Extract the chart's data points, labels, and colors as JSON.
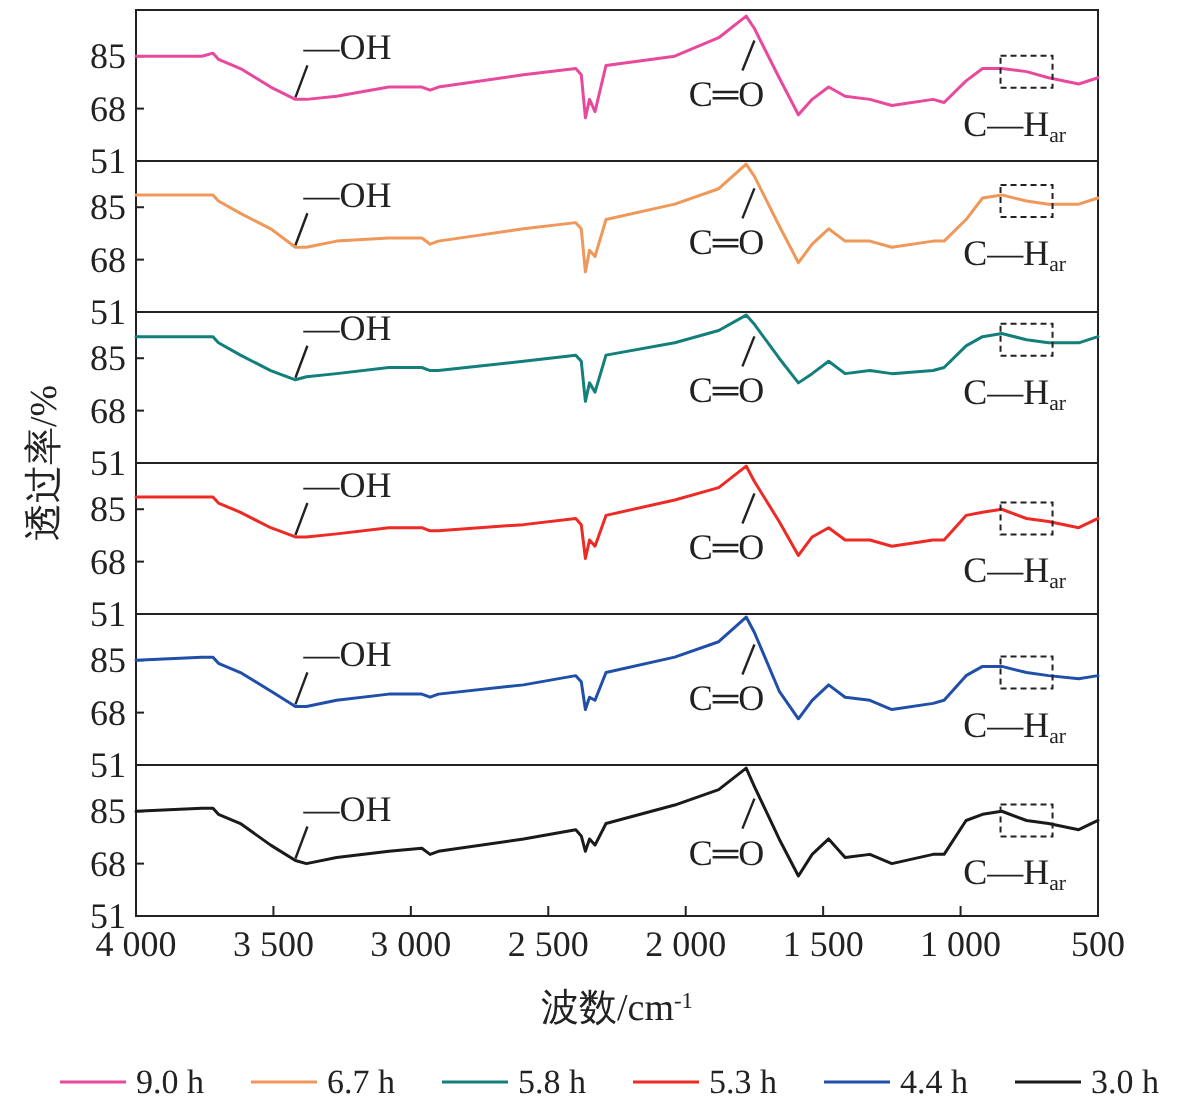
{
  "chart_data": [
    {
      "type": "line",
      "ylabel": "透过率/%",
      "x": [
        4000,
        3760,
        3720,
        3700,
        3620,
        3510,
        3420,
        3380,
        3270,
        3080,
        2960,
        2930,
        2900,
        2590,
        2400,
        2380,
        2365,
        2350,
        2330,
        2290,
        2040,
        1880,
        1780,
        1750,
        1660,
        1590,
        1540,
        1480,
        1420,
        1330,
        1250,
        1100,
        1060,
        980,
        920,
        850,
        760,
        680,
        570,
        500
      ],
      "xlim": [
        4000,
        500
      ],
      "ylim": [
        51,
        100
      ],
      "yticks": [
        51,
        68,
        85
      ],
      "tick_labels": "y",
      "legend": "bottom",
      "series": [
        {
          "name": "9.0 h",
          "color": "#e8499c",
          "values": [
            85,
            85,
            86,
            84,
            81,
            75,
            71,
            71,
            72,
            75,
            75,
            74,
            75,
            79,
            81,
            79,
            65,
            71,
            67,
            82,
            85,
            91,
            98,
            94,
            78,
            66,
            71,
            75,
            72,
            71,
            69,
            71,
            70,
            77,
            81,
            81,
            80,
            78,
            76,
            78
          ]
        }
      ],
      "annotations": [
        {
          "text": "—OH",
          "x": 3420,
          "y": 71
        },
        {
          "text": "C═O",
          "x": 1750,
          "y": 94
        },
        {
          "text": "C—H$_{ar}$",
          "x": 760,
          "y": 80
        }
      ]
    },
    {
      "type": "line",
      "x": [
        4000,
        3760,
        3720,
        3700,
        3620,
        3510,
        3420,
        3380,
        3270,
        3080,
        2960,
        2930,
        2900,
        2590,
        2400,
        2380,
        2365,
        2350,
        2330,
        2290,
        2040,
        1880,
        1780,
        1750,
        1660,
        1590,
        1540,
        1480,
        1420,
        1330,
        1250,
        1100,
        1060,
        980,
        920,
        850,
        760,
        680,
        570,
        500
      ],
      "xlim": [
        4000,
        500
      ],
      "ylim": [
        51,
        100
      ],
      "yticks": [
        51,
        68,
        85
      ],
      "tick_labels": "y",
      "legend": "bottom",
      "series": [
        {
          "name": "6.7 h",
          "color": "#f0975a",
          "values": [
            89,
            89,
            89,
            87,
            83,
            78,
            72,
            72,
            74,
            75,
            75,
            73,
            74,
            78,
            80,
            78,
            64,
            71,
            69,
            81,
            86,
            91,
            99,
            95,
            79,
            67,
            73,
            78,
            74,
            74,
            72,
            74,
            74,
            81,
            88,
            89,
            87,
            86,
            86,
            88
          ]
        }
      ],
      "annotations": [
        {
          "text": "—OH",
          "x": 3420,
          "y": 72
        },
        {
          "text": "C═O",
          "x": 1750,
          "y": 95
        },
        {
          "text": "C—H$_{ar}$",
          "x": 760,
          "y": 87
        }
      ]
    },
    {
      "type": "line",
      "x": [
        4000,
        3760,
        3720,
        3700,
        3620,
        3510,
        3420,
        3380,
        3270,
        3080,
        2960,
        2930,
        2900,
        2590,
        2400,
        2380,
        2365,
        2350,
        2330,
        2290,
        2040,
        1880,
        1780,
        1750,
        1660,
        1590,
        1540,
        1480,
        1420,
        1330,
        1250,
        1100,
        1060,
        980,
        920,
        850,
        760,
        680,
        570,
        500
      ],
      "xlim": [
        4000,
        500
      ],
      "ylim": [
        51,
        100
      ],
      "yticks": [
        51,
        68,
        85
      ],
      "tick_labels": "y",
      "legend": "bottom",
      "series": [
        {
          "name": "5.8 h",
          "color": "#127f7a",
          "values": [
            92,
            92,
            92,
            90,
            86,
            81,
            78,
            79,
            80,
            82,
            82,
            81,
            81,
            84,
            86,
            84,
            71,
            77,
            74,
            86,
            90,
            94,
            99,
            96,
            85,
            77,
            80,
            84,
            80,
            81,
            80,
            81,
            82,
            89,
            92,
            93,
            91,
            90,
            90,
            92
          ]
        }
      ],
      "annotations": [
        {
          "text": "—OH",
          "x": 3420,
          "y": 78
        },
        {
          "text": "C═O",
          "x": 1750,
          "y": 96
        },
        {
          "text": "C—H$_{ar}$",
          "x": 760,
          "y": 91
        }
      ]
    },
    {
      "type": "line",
      "x": [
        4000,
        3760,
        3720,
        3700,
        3620,
        3510,
        3420,
        3380,
        3270,
        3080,
        2960,
        2930,
        2900,
        2590,
        2400,
        2380,
        2365,
        2350,
        2330,
        2290,
        2040,
        1880,
        1780,
        1750,
        1660,
        1590,
        1540,
        1480,
        1420,
        1330,
        1250,
        1100,
        1060,
        980,
        920,
        850,
        760,
        680,
        570,
        500
      ],
      "xlim": [
        4000,
        500
      ],
      "ylim": [
        51,
        100
      ],
      "yticks": [
        51,
        68,
        85
      ],
      "tick_labels": "y",
      "legend": "bottom",
      "series": [
        {
          "name": "5.3 h",
          "color": "#ee2a24",
          "values": [
            89,
            89,
            89,
            87,
            84,
            79,
            76,
            76,
            77,
            79,
            79,
            78,
            78,
            80,
            82,
            80,
            69,
            75,
            73,
            83,
            88,
            92,
            99,
            94,
            81,
            70,
            76,
            79,
            75,
            75,
            73,
            75,
            75,
            83,
            84,
            85,
            82,
            81,
            79,
            82
          ]
        }
      ],
      "annotations": [
        {
          "text": "—OH",
          "x": 3420,
          "y": 76
        },
        {
          "text": "C═O",
          "x": 1750,
          "y": 94
        },
        {
          "text": "C—H$_{ar}$",
          "x": 760,
          "y": 82
        }
      ]
    },
    {
      "type": "line",
      "x": [
        4000,
        3760,
        3720,
        3700,
        3620,
        3510,
        3420,
        3380,
        3270,
        3080,
        2960,
        2930,
        2900,
        2590,
        2400,
        2380,
        2365,
        2350,
        2330,
        2290,
        2040,
        1880,
        1780,
        1750,
        1660,
        1590,
        1540,
        1480,
        1420,
        1330,
        1250,
        1100,
        1060,
        980,
        920,
        850,
        760,
        680,
        570,
        500
      ],
      "xlim": [
        4000,
        500
      ],
      "ylim": [
        51,
        100
      ],
      "yticks": [
        51,
        68,
        85
      ],
      "tick_labels": "y",
      "legend": "bottom",
      "series": [
        {
          "name": "4.4 h",
          "color": "#1f4fa8",
          "values": [
            85,
            86,
            86,
            84,
            81,
            75,
            70,
            70,
            72,
            74,
            74,
            73,
            74,
            77,
            80,
            78,
            69,
            73,
            72,
            81,
            86,
            91,
            99,
            94,
            75,
            66,
            72,
            77,
            73,
            72,
            69,
            71,
            72,
            80,
            83,
            83,
            81,
            80,
            79,
            80
          ]
        }
      ],
      "annotations": [
        {
          "text": "—OH",
          "x": 3420,
          "y": 70
        },
        {
          "text": "C═O",
          "x": 1750,
          "y": 94
        },
        {
          "text": "C—H$_{ar}$",
          "x": 760,
          "y": 81
        }
      ]
    },
    {
      "type": "line",
      "xlabel": "波数/cm$^{-1}$",
      "x": [
        4000,
        3760,
        3720,
        3700,
        3620,
        3510,
        3420,
        3380,
        3270,
        3080,
        2960,
        2930,
        2900,
        2590,
        2400,
        2380,
        2365,
        2350,
        2330,
        2290,
        2040,
        1880,
        1780,
        1750,
        1660,
        1590,
        1540,
        1480,
        1420,
        1330,
        1250,
        1100,
        1060,
        980,
        920,
        850,
        760,
        680,
        570,
        500
      ],
      "xlim": [
        4000,
        500
      ],
      "ylim": [
        51,
        100
      ],
      "yticks": [
        51,
        68,
        85
      ],
      "xticks": [
        {
          "value": 4000,
          "label": "4 000"
        },
        {
          "value": 3500,
          "label": "3 500"
        },
        {
          "value": 3000,
          "label": "3 000"
        },
        {
          "value": 2500,
          "label": "2 500"
        },
        {
          "value": 2000,
          "label": "2 000"
        },
        {
          "value": 1500,
          "label": "1 500"
        },
        {
          "value": 1000,
          "label": "1 000"
        },
        500
      ],
      "legend": "bottom",
      "series": [
        {
          "name": "3.0 h",
          "color": "#1a1a1a",
          "values": [
            85,
            86,
            86,
            84,
            81,
            74,
            69,
            68,
            70,
            72,
            73,
            71,
            72,
            76,
            79,
            77,
            72,
            76,
            74,
            81,
            87,
            92,
            99,
            93,
            76,
            64,
            71,
            76,
            70,
            71,
            68,
            71,
            71,
            82,
            84,
            85,
            82,
            81,
            79,
            82
          ]
        }
      ],
      "annotations": [
        {
          "text": "—OH",
          "x": 3420,
          "y": 69
        },
        {
          "text": "C═O",
          "x": 1750,
          "y": 93
        },
        {
          "text": "C—H$_{ar}$",
          "x": 760,
          "y": 82
        }
      ]
    }
  ]
}
